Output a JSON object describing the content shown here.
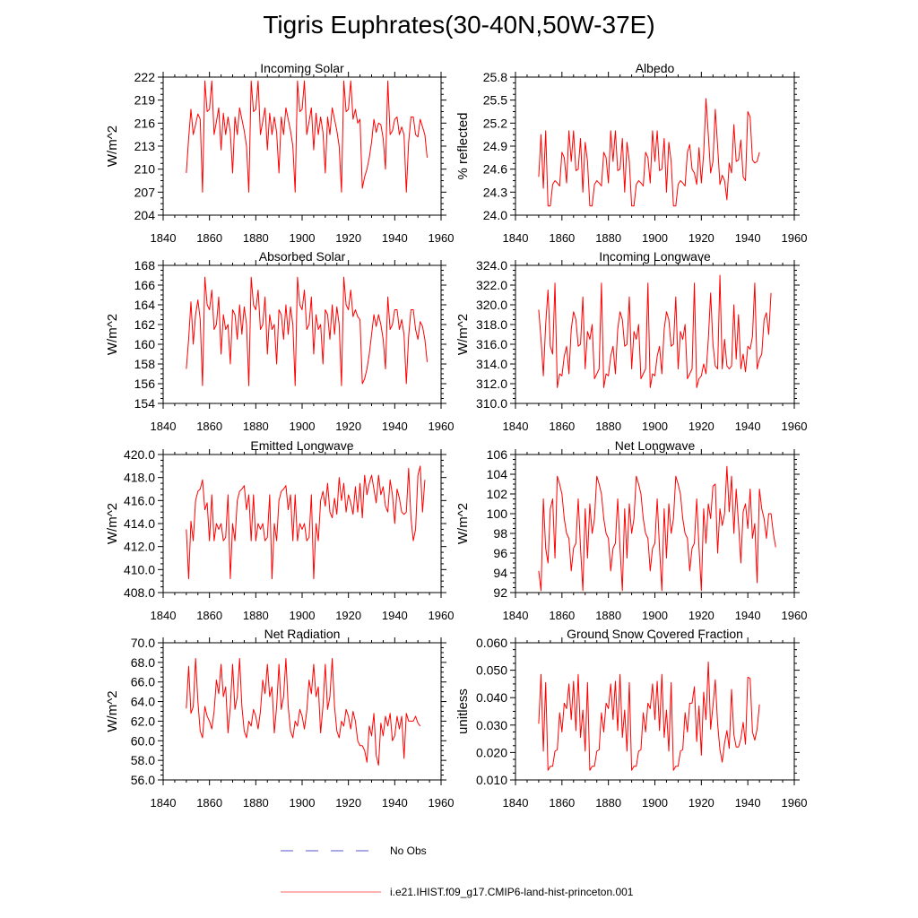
{
  "page": {
    "title": "Tigris Euphrates(30-40N,50W-37E)"
  },
  "legend": {
    "items": [
      {
        "label": "No Obs",
        "color": "#5555cc",
        "style": "dashed"
      },
      {
        "label": "i.e21.IHIST.f09_g17.CMIP6-land-hist-princeton.001",
        "color": "#ff6666",
        "style": "solid"
      }
    ]
  },
  "series_color": "#ff0000",
  "chart_data": [
    {
      "type": "line",
      "title": "Incoming Solar",
      "ylabel": "W/m^2",
      "xlim": [
        1840,
        1960
      ],
      "ylim": [
        204,
        222
      ],
      "xticks": [
        1840,
        1860,
        1880,
        1900,
        1920,
        1940,
        1960
      ],
      "yticks": [
        204,
        207,
        210,
        213,
        216,
        219,
        222
      ],
      "ytick_labels": [
        "204",
        "207",
        "210",
        "213",
        "216",
        "219",
        "222"
      ],
      "x_start": 1850,
      "values": [
        209.5,
        214.0,
        217.8,
        214.5,
        215.8,
        217.2,
        216.5,
        207.0,
        221.5,
        217.5,
        217.8,
        221.5,
        214.5,
        216.2,
        218.0,
        212.5,
        217.3,
        214.5,
        216.8,
        214.8,
        209.5,
        216.8,
        214.5,
        218.0,
        216.5,
        215.0,
        213.0,
        207.0,
        221.5,
        217.5,
        217.8,
        221.5,
        214.5,
        216.2,
        218.0,
        212.5,
        217.3,
        214.5,
        216.8,
        214.8,
        209.5,
        216.8,
        214.5,
        218.0,
        216.5,
        215.0,
        213.0,
        207.0,
        221.5,
        217.5,
        217.8,
        221.5,
        214.5,
        216.2,
        218.0,
        212.5,
        217.3,
        214.5,
        216.8,
        214.8,
        209.5,
        216.8,
        214.5,
        218.0,
        216.5,
        215.0,
        213.0,
        207.0,
        221.5,
        217.5,
        217.8,
        221.5,
        216.5,
        217.8,
        216.0,
        216.5,
        207.5,
        209.0,
        210.0,
        211.5,
        213.5,
        216.5,
        214.8,
        216.0,
        215.8,
        214.0,
        210.0,
        221.5,
        214.5,
        215.0,
        216.5,
        216.8,
        214.5,
        215.5,
        214.5,
        207.0,
        213.5,
        216.8,
        216.8,
        214.5,
        214.2,
        216.5,
        215.5,
        214.5,
        211.5
      ]
    },
    {
      "type": "line",
      "title": "Albedo",
      "ylabel": "% reflected",
      "xlim": [
        1840,
        1960
      ],
      "ylim": [
        24.0,
        25.8
      ],
      "xticks": [
        1840,
        1860,
        1880,
        1900,
        1920,
        1940,
        1960
      ],
      "yticks": [
        24.0,
        24.3,
        24.6,
        24.9,
        25.2,
        25.5,
        25.8
      ],
      "ytick_labels": [
        "24.0",
        "24.3",
        "24.6",
        "24.9",
        "25.2",
        "25.5",
        "25.8"
      ],
      "x_start": 1850,
      "values": [
        24.5,
        25.05,
        24.35,
        25.1,
        24.12,
        24.12,
        24.4,
        24.45,
        24.42,
        24.38,
        24.82,
        24.75,
        24.42,
        25.1,
        24.7,
        25.1,
        24.58,
        24.6,
        25.0,
        24.3,
        24.95,
        24.7,
        24.12,
        24.12,
        24.4,
        24.45,
        24.42,
        24.38,
        24.82,
        24.75,
        24.42,
        25.1,
        24.7,
        25.1,
        24.58,
        24.6,
        25.0,
        24.3,
        24.95,
        24.7,
        24.12,
        24.12,
        24.4,
        24.45,
        24.42,
        24.38,
        24.82,
        24.75,
        24.42,
        25.1,
        24.7,
        25.1,
        24.58,
        24.6,
        25.0,
        24.3,
        24.95,
        24.7,
        24.12,
        24.12,
        24.4,
        24.45,
        24.42,
        24.38,
        24.82,
        24.92,
        24.6,
        24.55,
        24.4,
        24.88,
        24.42,
        24.8,
        25.52,
        25.05,
        24.55,
        24.7,
        25.38,
        24.9,
        24.4,
        24.52,
        24.45,
        24.2,
        24.68,
        24.55,
        25.18,
        24.7,
        24.72,
        24.98,
        24.5,
        24.45,
        25.35,
        25.28,
        24.72,
        24.68,
        24.7,
        24.82
      ]
    },
    {
      "type": "line",
      "title": "Absorbed Solar",
      "ylabel": "W/m^2",
      "xlim": [
        1840,
        1960
      ],
      "ylim": [
        154,
        168
      ],
      "xticks": [
        1840,
        1860,
        1880,
        1900,
        1920,
        1940,
        1960
      ],
      "yticks": [
        154,
        156,
        158,
        160,
        162,
        164,
        166,
        168
      ],
      "ytick_labels": [
        "154",
        "156",
        "158",
        "160",
        "162",
        "164",
        "166",
        "168"
      ],
      "x_start": 1850,
      "values": [
        157.5,
        160.5,
        164.3,
        160.0,
        163.0,
        164.5,
        162.5,
        155.8,
        166.8,
        164.0,
        163.5,
        165.5,
        161.5,
        162.0,
        164.8,
        159.0,
        163.0,
        161.5,
        162.0,
        158.0,
        163.5,
        163.0,
        160.5,
        164.0,
        161.0,
        163.8,
        162.0,
        155.8,
        166.8,
        164.0,
        163.5,
        165.5,
        161.5,
        162.0,
        164.8,
        159.0,
        163.0,
        161.5,
        162.0,
        158.0,
        163.5,
        163.0,
        160.5,
        164.0,
        161.0,
        163.8,
        162.0,
        155.8,
        166.8,
        164.0,
        163.5,
        165.5,
        161.5,
        162.0,
        164.8,
        159.0,
        163.0,
        161.5,
        162.0,
        158.0,
        163.5,
        163.0,
        160.5,
        164.0,
        161.0,
        163.8,
        162.0,
        155.8,
        166.8,
        164.0,
        163.5,
        165.5,
        162.8,
        163.5,
        162.8,
        162.5,
        156.0,
        156.5,
        157.5,
        159.0,
        161.0,
        163.0,
        161.8,
        163.0,
        162.0,
        160.5,
        157.5,
        164.8,
        161.5,
        162.0,
        163.5,
        163.5,
        161.5,
        162.5,
        161.0,
        156.0,
        160.8,
        163.5,
        163.5,
        161.5,
        160.5,
        162.3,
        161.8,
        160.5,
        158.2
      ]
    },
    {
      "type": "line",
      "title": "Incoming Longwave",
      "ylabel": "W/m^2",
      "xlim": [
        1840,
        1960
      ],
      "ylim": [
        310.0,
        324.0
      ],
      "xticks": [
        1840,
        1860,
        1880,
        1900,
        1920,
        1940,
        1960
      ],
      "yticks": [
        310.0,
        312.0,
        314.0,
        316.0,
        318.0,
        320.0,
        322.0,
        324.0
      ],
      "ytick_labels": [
        "310.0",
        "312.0",
        "314.0",
        "316.0",
        "318.0",
        "320.0",
        "322.0",
        "324.0"
      ],
      "x_start": 1850,
      "values": [
        319.5,
        316.5,
        312.8,
        318.0,
        321.5,
        315.8,
        315.0,
        322.2,
        311.6,
        313.0,
        312.8,
        314.8,
        315.8,
        313.0,
        317.5,
        319.3,
        318.5,
        315.8,
        316.0,
        320.8,
        313.5,
        317.3,
        316.5,
        318.0,
        312.5,
        313.0,
        313.5,
        322.2,
        311.6,
        313.0,
        312.8,
        314.8,
        315.8,
        313.0,
        317.5,
        319.3,
        318.5,
        315.8,
        316.0,
        320.8,
        313.5,
        317.3,
        316.5,
        318.0,
        312.5,
        313.0,
        313.5,
        322.2,
        311.6,
        313.0,
        312.8,
        314.8,
        315.8,
        313.0,
        317.5,
        319.3,
        318.5,
        315.8,
        316.0,
        320.8,
        313.5,
        317.3,
        316.5,
        318.0,
        312.5,
        313.0,
        313.5,
        322.2,
        311.6,
        312.5,
        312.8,
        314.0,
        313.0,
        316.5,
        321.2,
        316.0,
        313.8,
        313.5,
        323.0,
        313.5,
        316.5,
        313.8,
        313.5,
        313.8,
        320.0,
        314.5,
        319.0,
        313.5,
        315.0,
        313.2,
        315.8,
        315.5,
        316.8,
        322.2,
        313.5,
        314.5,
        315.0,
        318.5,
        319.2,
        317.0,
        321.2
      ]
    },
    {
      "type": "line",
      "title": "Emitted Longwave",
      "ylabel": "W/m^2",
      "xlim": [
        1840,
        1960
      ],
      "ylim": [
        408.0,
        420.0
      ],
      "xticks": [
        1840,
        1860,
        1880,
        1900,
        1920,
        1940,
        1960
      ],
      "yticks": [
        408.0,
        410.0,
        412.0,
        414.0,
        416.0,
        418.0,
        420.0
      ],
      "ytick_labels": [
        "408.0",
        "410.0",
        "412.0",
        "414.0",
        "416.0",
        "418.0",
        "420.0"
      ],
      "x_start": 1850,
      "values": [
        413.5,
        409.2,
        414.2,
        412.5,
        416.0,
        416.8,
        417.0,
        417.8,
        415.2,
        415.8,
        412.5,
        416.5,
        412.5,
        414.0,
        413.5,
        414.0,
        412.5,
        412.8,
        416.5,
        409.2,
        414.0,
        412.5,
        416.0,
        416.8,
        417.0,
        417.3,
        415.2,
        416.5,
        412.5,
        416.5,
        412.5,
        414.0,
        413.5,
        414.0,
        412.5,
        412.8,
        416.5,
        409.2,
        414.0,
        412.5,
        416.0,
        416.8,
        417.0,
        417.3,
        415.2,
        416.5,
        412.5,
        416.5,
        412.5,
        414.0,
        413.5,
        414.0,
        412.5,
        412.8,
        416.5,
        409.2,
        414.0,
        412.5,
        416.0,
        416.8,
        415.5,
        417.5,
        415.0,
        414.5,
        416.2,
        414.8,
        418.0,
        416.0,
        417.5,
        415.0,
        416.5,
        415.8,
        414.8,
        417.2,
        415.0,
        417.5,
        414.5,
        418.2,
        416.5,
        417.5,
        418.2,
        417.0,
        415.8,
        418.2,
        416.5,
        417.2,
        415.5,
        415.0,
        417.8,
        416.5,
        414.0,
        417.0,
        416.2,
        415.0,
        414.8,
        415.0,
        418.8,
        414.5,
        412.5,
        413.5,
        418.2,
        419.0,
        415.0,
        417.8
      ]
    },
    {
      "type": "line",
      "title": "Net Longwave",
      "ylabel": "W/m^2",
      "xlim": [
        1840,
        1960
      ],
      "ylim": [
        92,
        106
      ],
      "xticks": [
        1840,
        1860,
        1880,
        1900,
        1920,
        1940,
        1960
      ],
      "yticks": [
        92,
        94,
        96,
        98,
        100,
        102,
        104,
        106
      ],
      "ytick_labels": [
        "92",
        "94",
        "96",
        "98",
        "100",
        "102",
        "104",
        "106"
      ],
      "x_start": 1850,
      "values": [
        94.2,
        92.2,
        101.5,
        96.5,
        95.0,
        100.5,
        101.5,
        95.5,
        103.8,
        103.0,
        102.0,
        99.5,
        98.0,
        97.5,
        94.2,
        96.5,
        97.0,
        101.5,
        96.5,
        92.2,
        100.5,
        95.5,
        101.0,
        98.0,
        99.5,
        103.8,
        103.0,
        102.0,
        99.5,
        98.0,
        97.5,
        94.2,
        96.5,
        97.0,
        101.5,
        96.5,
        92.2,
        100.5,
        95.5,
        101.0,
        98.0,
        99.5,
        103.8,
        103.0,
        102.0,
        99.5,
        98.0,
        97.5,
        94.2,
        96.5,
        97.0,
        101.5,
        96.5,
        92.2,
        100.5,
        95.5,
        101.0,
        98.0,
        99.5,
        103.8,
        103.0,
        102.0,
        99.5,
        98.0,
        97.5,
        94.2,
        96.5,
        97.0,
        101.5,
        96.5,
        92.2,
        100.5,
        97.0,
        101.0,
        99.5,
        102.8,
        103.0,
        96.0,
        100.5,
        98.8,
        100.0,
        104.8,
        100.2,
        103.8,
        98.0,
        102.5,
        99.0,
        95.0,
        100.2,
        101.0,
        98.5,
        102.5,
        97.5,
        99.0,
        93.0,
        102.5,
        100.5,
        99.5,
        97.5,
        100.0,
        100.0,
        98.0,
        96.6
      ]
    },
    {
      "type": "line",
      "title": "Net Radiation",
      "ylabel": "W/m^2",
      "xlim": [
        1840,
        1960
      ],
      "ylim": [
        56.0,
        70.0
      ],
      "xticks": [
        1840,
        1860,
        1880,
        1900,
        1920,
        1940,
        1960
      ],
      "yticks": [
        56.0,
        58.0,
        60.0,
        62.0,
        64.0,
        66.0,
        68.0,
        70.0
      ],
      "ytick_labels": [
        "56.0",
        "58.0",
        "60.0",
        "62.0",
        "64.0",
        "66.0",
        "68.0",
        "70.0"
      ],
      "x_start": 1850,
      "values": [
        63.3,
        67.6,
        62.8,
        63.5,
        68.4,
        64.0,
        61.0,
        60.3,
        63.5,
        62.5,
        62.0,
        61.2,
        63.0,
        66.2,
        64.8,
        67.8,
        64.5,
        65.5,
        60.8,
        63.5,
        67.8,
        63.2,
        64.5,
        68.4,
        63.5,
        61.0,
        60.3,
        62.0,
        61.5,
        63.2,
        62.5,
        61.2,
        63.0,
        66.2,
        64.8,
        67.8,
        64.5,
        65.5,
        60.8,
        63.5,
        67.8,
        63.2,
        64.5,
        68.4,
        63.5,
        61.0,
        60.3,
        62.0,
        61.5,
        63.2,
        62.5,
        61.2,
        63.0,
        66.2,
        64.8,
        67.8,
        64.5,
        65.5,
        60.8,
        63.5,
        67.8,
        63.2,
        64.5,
        68.4,
        63.5,
        61.0,
        60.3,
        62.0,
        61.5,
        63.2,
        62.5,
        61.2,
        63.0,
        62.0,
        60.0,
        59.5,
        59.5,
        59.0,
        57.8,
        61.5,
        60.5,
        62.8,
        58.5,
        57.5,
        61.8,
        60.5,
        62.5,
        61.5,
        62.8,
        60.0,
        60.5,
        62.5,
        61.2,
        62.5,
        58.2,
        62.8,
        62.0,
        62.0,
        62.0,
        62.5,
        61.8,
        61.5
      ]
    },
    {
      "type": "line",
      "title": "Ground Snow Covered Fraction",
      "ylabel": "unitless",
      "xlim": [
        1840,
        1960
      ],
      "ylim": [
        0.01,
        0.06
      ],
      "xticks": [
        1840,
        1860,
        1880,
        1900,
        1920,
        1940,
        1960
      ],
      "yticks": [
        0.01,
        0.02,
        0.03,
        0.04,
        0.05,
        0.06
      ],
      "ytick_labels": [
        "0.010",
        "0.020",
        "0.030",
        "0.040",
        "0.050",
        "0.060"
      ],
      "x_start": 1850,
      "values": [
        0.0305,
        0.0485,
        0.0205,
        0.0455,
        0.0135,
        0.015,
        0.015,
        0.0205,
        0.021,
        0.0345,
        0.0275,
        0.038,
        0.036,
        0.045,
        0.032,
        0.046,
        0.028,
        0.0485,
        0.0255,
        0.0355,
        0.0205,
        0.0455,
        0.0135,
        0.015,
        0.015,
        0.0205,
        0.021,
        0.0345,
        0.0275,
        0.038,
        0.036,
        0.045,
        0.032,
        0.046,
        0.028,
        0.0485,
        0.0255,
        0.0355,
        0.0205,
        0.0455,
        0.0135,
        0.015,
        0.015,
        0.0205,
        0.021,
        0.0345,
        0.0275,
        0.038,
        0.036,
        0.045,
        0.032,
        0.046,
        0.028,
        0.0485,
        0.0255,
        0.0355,
        0.0205,
        0.0455,
        0.0135,
        0.015,
        0.015,
        0.0205,
        0.021,
        0.0345,
        0.0275,
        0.038,
        0.038,
        0.044,
        0.024,
        0.037,
        0.019,
        0.042,
        0.032,
        0.053,
        0.0285,
        0.037,
        0.0465,
        0.0305,
        0.021,
        0.0165,
        0.0235,
        0.028,
        0.0215,
        0.043,
        0.0265,
        0.022,
        0.022,
        0.025,
        0.031,
        0.023,
        0.0475,
        0.047,
        0.0275,
        0.0245,
        0.0285,
        0.0375
      ]
    }
  ]
}
